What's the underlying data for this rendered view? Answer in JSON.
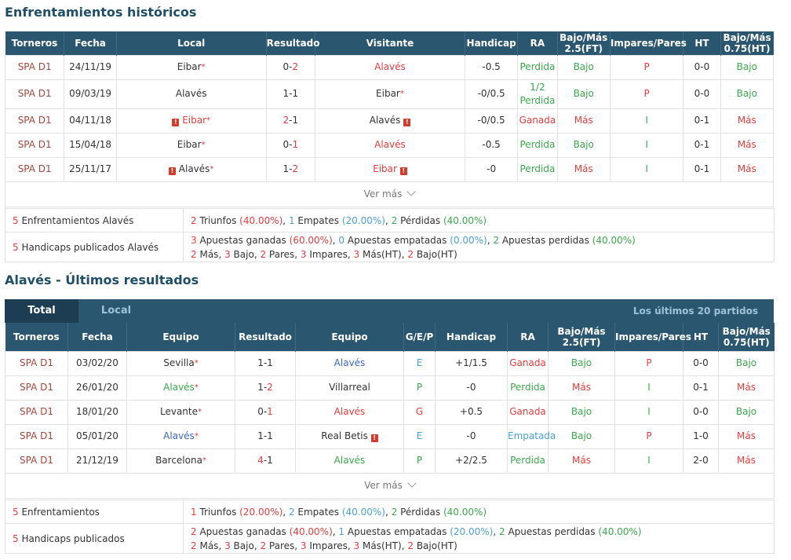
{
  "h2h": {
    "title": "Enfrentamientos históricos",
    "headers": [
      "Torneros",
      "Fecha",
      "Local",
      "Resultado",
      "Visitante",
      "Handicap",
      "RA",
      "Bajo/Más 2.5(FT)",
      "Impares/Pares",
      "HT",
      "Bajo/Más 0.75(HT)"
    ],
    "rows": [
      {
        "league": "SPA D1",
        "date": "24/11/19",
        "home": "Eibar",
        "home_star": "*",
        "res_a": "0",
        "res_sep": "-",
        "res_b": "2",
        "away": "Alavés",
        "handicap": "-0.5",
        "ra": "Perdida",
        "ou": "Bajo",
        "oe": "P",
        "ht": "0-0",
        "ouht": "Bajo"
      },
      {
        "league": "SPA D1",
        "date": "09/03/19",
        "home": "Alavés",
        "res_a": "1",
        "res_sep": "-",
        "res_b": "1",
        "away": "Eibar",
        "away_star": "*",
        "handicap": "-0/0.5",
        "ra_top": "1/2",
        "ra": "Perdida",
        "ou": "Bajo",
        "oe": "P",
        "ht": "0-0",
        "ouht": "Bajo"
      },
      {
        "league": "SPA D1",
        "date": "04/11/18",
        "home": "Eibar",
        "home_star": "*",
        "home_warn": "!",
        "res_a": "2",
        "res_sep": "-",
        "res_b": "1",
        "away": "Alavés",
        "away_warn": "!",
        "handicap": "-0/0.5",
        "ra": "Ganada",
        "ou": "Más",
        "oe": "I",
        "ht": "0-1",
        "ouht": "Más"
      },
      {
        "league": "SPA D1",
        "date": "15/04/18",
        "home": "Eibar",
        "home_star": "*",
        "res_a": "0",
        "res_sep": "-",
        "res_b": "1",
        "away": "Alavés",
        "handicap": "-0.5",
        "ra": "Perdida",
        "ou": "Bajo",
        "oe": "I",
        "ht": "0-1",
        "ouht": "Más"
      },
      {
        "league": "SPA D1",
        "date": "25/11/17",
        "home": "Alavés",
        "home_star": "*",
        "home_warn": "!",
        "res_a": "1",
        "res_sep": "-",
        "res_b": "2",
        "away": "Eibar",
        "away_warn": "!",
        "handicap": "-0",
        "ra": "Perdida",
        "ou": "Más",
        "oe": "I",
        "ht": "0-1",
        "ouht": "Más"
      }
    ],
    "more": "Ver más",
    "stats": {
      "s1_num": "5",
      "s1_label": "Enfrentamientos Alavés",
      "s1": {
        "w_n": "2",
        "w_l": "Triunfos",
        "w_p": "(40.00%)",
        "d_n": "1",
        "d_l": "Empates",
        "d_p": "(20.00%)",
        "l_n": "2",
        "l_l": "Pérdidas",
        "l_p": "(40.00%)"
      },
      "s2_num": "5",
      "s2_label": "Handicaps publicados Alavés",
      "s2": {
        "a_n": "3",
        "a_l": "Apuestas ganadas",
        "a_p": "(60.00%)",
        "b_n": "0",
        "b_l": "Apuestas empatadas",
        "b_p": "(0.00%)",
        "c_n": "2",
        "c_l": "Apuestas perdidas",
        "c_p": "(40.00%)",
        "m_n": "2",
        "m_l": "Más",
        "bj_n": "3",
        "bj_l": "Bajo",
        "p_n": "2",
        "p_l": "Pares",
        "i_n": "3",
        "i_l": "Impares",
        "mh_n": "3",
        "mh_l": "Más(HT)",
        "bh_n": "2",
        "bh_l": "Bajo(HT)"
      }
    }
  },
  "recent": {
    "title": "Alavés - Últimos resultados",
    "tabs": {
      "total": "Total",
      "local": "Local",
      "right": "Los últimos 20 partidos"
    },
    "headers": [
      "Torneros",
      "Fecha",
      "Equipo",
      "Resultado",
      "Equipo",
      "G/E/P",
      "Handicap",
      "RA",
      "Bajo/Más 2.5(FT)",
      "Impares/Pares",
      "HT",
      "Bajo/Más 0.75(HT)"
    ],
    "rows": [
      {
        "league": "SPA D1",
        "date": "03/02/20",
        "home": "Sevilla",
        "home_star": "*",
        "res_a": "1",
        "res_sep": "-",
        "res_b": "1",
        "away": "Alavés",
        "gep": "E",
        "handicap": "+1/1.5",
        "ra": "Ganada",
        "ou": "Bajo",
        "oe": "P",
        "ht": "0-0",
        "ouht": "Bajo"
      },
      {
        "league": "SPA D1",
        "date": "26/01/20",
        "home": "Alavés",
        "home_star": "*",
        "res_a": "1",
        "res_sep": "-",
        "res_b": "2",
        "away": "Villarreal",
        "gep": "P",
        "handicap": "-0",
        "ra": "Perdida",
        "ou": "Más",
        "oe": "I",
        "ht": "0-1",
        "ouht": "Más"
      },
      {
        "league": "SPA D1",
        "date": "18/01/20",
        "home": "Levante",
        "home_star": "*",
        "res_a": "0",
        "res_sep": "-",
        "res_b": "1",
        "away": "Alavés",
        "gep": "G",
        "handicap": "+0.5",
        "ra": "Ganada",
        "ou": "Bajo",
        "oe": "I",
        "ht": "0-0",
        "ouht": "Bajo"
      },
      {
        "league": "SPA D1",
        "date": "05/01/20",
        "home": "Alavés",
        "home_star": "*",
        "res_a": "1",
        "res_sep": "-",
        "res_b": "1",
        "away": "Real Betis",
        "away_warn": "!",
        "gep": "E",
        "handicap": "-0",
        "ra": "Empatada",
        "ou": "Bajo",
        "oe": "P",
        "ht": "1-0",
        "ouht": "Más"
      },
      {
        "league": "SPA D1",
        "date": "21/12/19",
        "home": "Barcelona",
        "home_star": "*",
        "res_a": "4",
        "res_sep": "-",
        "res_b": "1",
        "away": "Alavés",
        "gep": "P",
        "handicap": "+2/2.5",
        "ra": "Perdida",
        "ou": "Más",
        "oe": "I",
        "ht": "2-0",
        "ouht": "Más"
      }
    ],
    "more": "Ver más",
    "stats": {
      "s1_num": "5",
      "s1_label": "Enfrentamientos",
      "s1": {
        "w_n": "1",
        "w_l": "Triunfos",
        "w_p": "(20.00%)",
        "d_n": "2",
        "d_l": "Empates",
        "d_p": "(40.00%)",
        "l_n": "2",
        "l_l": "Pérdidas",
        "l_p": "(40.00%)"
      },
      "s2_num": "5",
      "s2_label": "Handicaps publicados",
      "s2": {
        "a_n": "2",
        "a_l": "Apuestas ganadas",
        "a_p": "(40.00%)",
        "b_n": "1",
        "b_l": "Apuestas empatadas",
        "b_p": "(20.00%)",
        "c_n": "2",
        "c_l": "Apuestas perdidas",
        "c_p": "(40.00%)",
        "m_n": "2",
        "m_l": "Más",
        "bj_n": "3",
        "bj_l": "Bajo",
        "p_n": "2",
        "p_l": "Pares",
        "i_n": "3",
        "i_l": "Impares",
        "mh_n": "3",
        "mh_l": "Más(HT)",
        "bh_n": "2",
        "bh_l": "Bajo(HT)"
      }
    }
  },
  "colors": {
    "header_bg": "#2a5670",
    "title": "#1f4e66",
    "red": "#e63c3c",
    "green": "#3aa84b",
    "blue": "#3c63c8",
    "lightblue": "#4a9fd8"
  }
}
